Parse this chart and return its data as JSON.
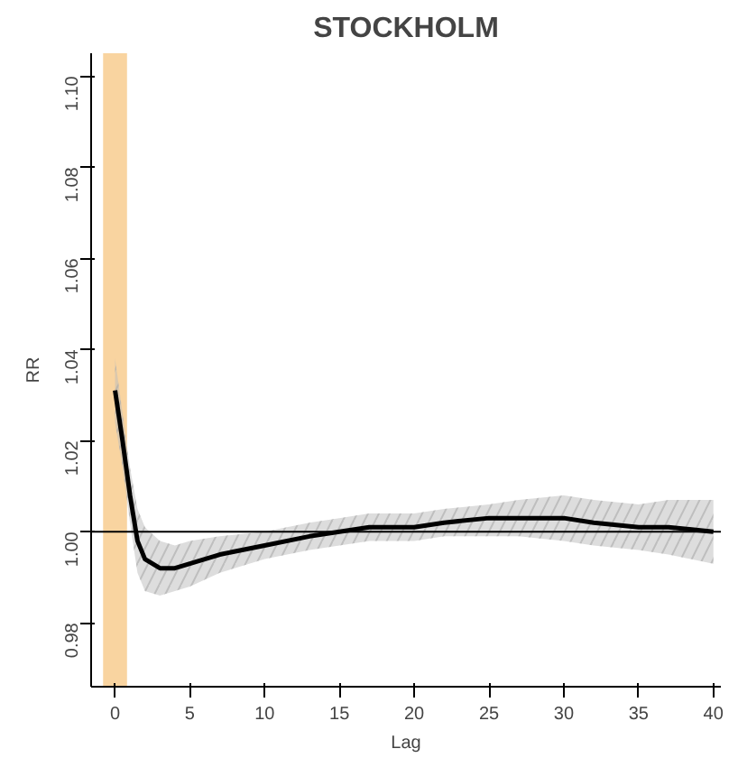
{
  "chart_data": {
    "type": "line",
    "title": "STOCKHOLM",
    "xlabel": "Lag",
    "ylabel": "RR",
    "x": [
      0,
      0.5,
      1,
      1.5,
      2,
      3,
      4,
      5,
      7,
      10,
      13,
      15,
      17,
      20,
      22,
      25,
      27,
      30,
      32,
      35,
      37,
      40
    ],
    "series": [
      {
        "color": "#000000",
        "values": [
          1.031,
          1.02,
          1.008,
          0.998,
          0.994,
          0.992,
          0.992,
          0.993,
          0.995,
          0.997,
          0.999,
          1.0,
          1.001,
          1.001,
          1.002,
          1.003,
          1.003,
          1.003,
          1.002,
          1.001,
          1.001,
          1.0
        ],
        "lower": [
          1.024,
          1.014,
          1.002,
          0.991,
          0.987,
          0.986,
          0.987,
          0.988,
          0.991,
          0.994,
          0.996,
          0.997,
          0.998,
          0.998,
          0.999,
          0.999,
          0.999,
          0.998,
          0.997,
          0.996,
          0.995,
          0.993
        ],
        "upper": [
          1.038,
          1.026,
          1.014,
          1.005,
          1.001,
          0.998,
          0.997,
          0.998,
          0.999,
          1.0,
          1.002,
          1.003,
          1.004,
          1.004,
          1.005,
          1.006,
          1.007,
          1.008,
          1.007,
          1.006,
          1.007,
          1.007
        ]
      }
    ],
    "xlim": [
      -1.6,
      40.5
    ],
    "ylim": [
      0.966,
      1.105
    ],
    "xticks": [
      0,
      5,
      10,
      15,
      20,
      25,
      30,
      35,
      40
    ],
    "yticks": [
      {
        "value": 0.98,
        "label": "0.98"
      },
      {
        "value": 1.0,
        "label": "1.00"
      },
      {
        "value": 1.02,
        "label": "1.02"
      },
      {
        "value": 1.04,
        "label": "1.04"
      },
      {
        "value": 1.06,
        "label": "1.06"
      },
      {
        "value": 1.08,
        "label": "1.08"
      },
      {
        "value": 1.1,
        "label": "1.10"
      }
    ],
    "ref_lines": [
      {
        "axis": "y",
        "value": 1.0,
        "label": null,
        "color": "#000000"
      }
    ],
    "bands": [
      {
        "axis": "x",
        "from": -0.8,
        "to": 0.8,
        "label": null,
        "color": "#f5b860"
      }
    ],
    "grid": false,
    "marker": "none",
    "line_style": "solid"
  }
}
